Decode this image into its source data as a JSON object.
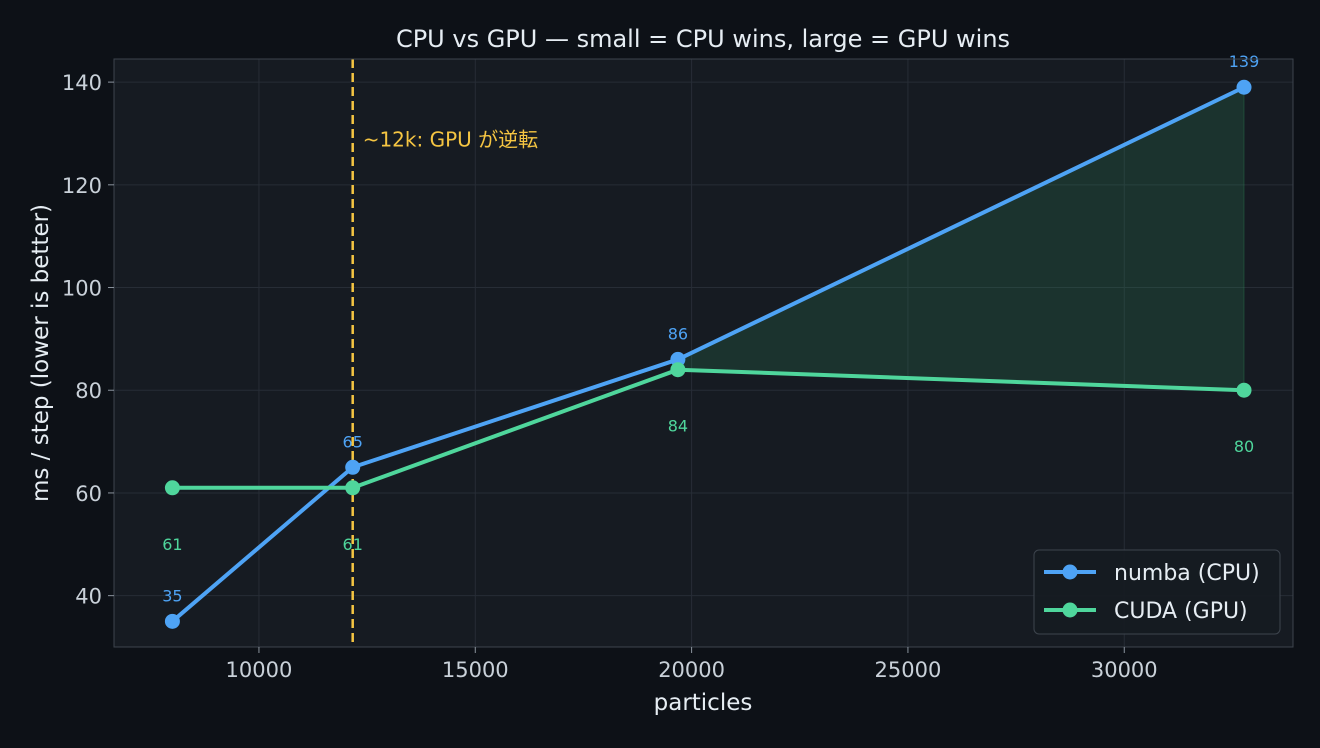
{
  "chart_data": {
    "type": "line",
    "title": "CPU vs GPU  —  small = CPU wins, large = GPU wins",
    "xlabel": "particles",
    "ylabel": "ms / step  (lower is better)",
    "xlim": [
      6650,
      33900
    ],
    "ylim": [
      30,
      144.5
    ],
    "xticks": [
      10000,
      15000,
      20000,
      25000,
      30000
    ],
    "yticks": [
      40,
      60,
      80,
      100,
      120,
      140
    ],
    "grid": true,
    "legend_position": "bottom-right",
    "series": [
      {
        "name": "numba (CPU)",
        "color": "#4ea3f5",
        "x": [
          8000,
          12167,
          19683,
          32768
        ],
        "y": [
          35,
          65,
          86,
          139
        ],
        "labels": [
          "35",
          "65",
          "86",
          "139"
        ]
      },
      {
        "name": "CUDA (GPU)",
        "color": "#4fd69c",
        "x": [
          8000,
          12167,
          19683,
          32768
        ],
        "y": [
          61,
          61,
          84,
          80
        ],
        "labels": [
          "61",
          "61",
          "84",
          "80"
        ]
      }
    ],
    "crossover": {
      "x": 12167,
      "label": "~12k: GPU が逆転",
      "color": "#f5c542"
    },
    "shaded_region": {
      "description_hidden": true,
      "from_x": 19683,
      "to_x": 32768,
      "color": "#2e8a5a"
    }
  }
}
